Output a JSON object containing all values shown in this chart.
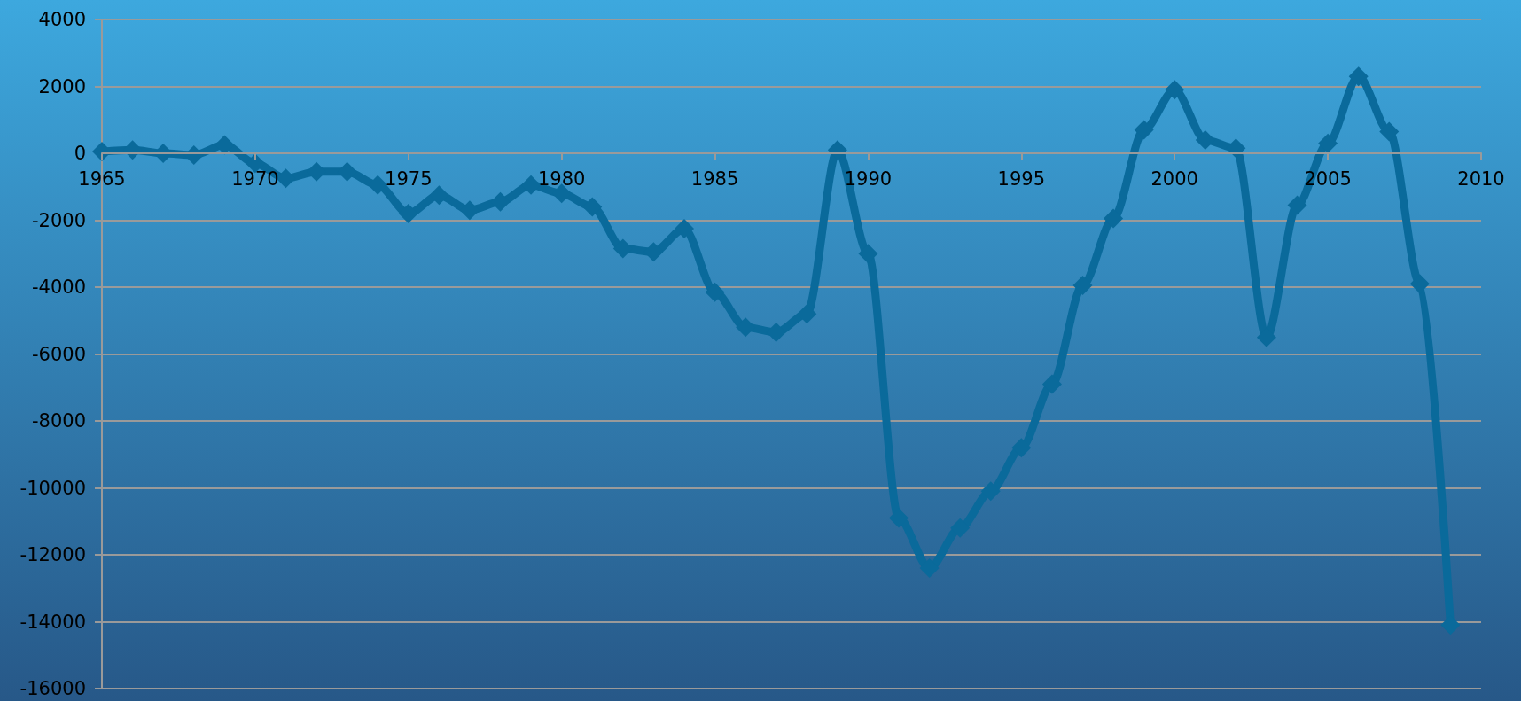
{
  "chart_data": {
    "type": "line",
    "x": [
      1965,
      1966,
      1967,
      1968,
      1969,
      1970,
      1971,
      1972,
      1973,
      1974,
      1975,
      1976,
      1977,
      1978,
      1979,
      1980,
      1981,
      1982,
      1983,
      1984,
      1985,
      1986,
      1987,
      1988,
      1989,
      1990,
      1991,
      1992,
      1993,
      1994,
      1995,
      1996,
      1997,
      1998,
      1999,
      2000,
      2001,
      2002,
      2003,
      2004,
      2005,
      2006,
      2007,
      2008,
      2009
    ],
    "series": [
      {
        "color": "#0a6a9b",
        "values": [
          50,
          100,
          0,
          -50,
          250,
          -300,
          -750,
          -550,
          -550,
          -950,
          -1800,
          -1250,
          -1700,
          -1450,
          -950,
          -1200,
          -1600,
          -2850,
          -2950,
          -2250,
          -4150,
          -5200,
          -5350,
          -4800,
          100,
          -3000,
          -10900,
          -12400,
          -11200,
          -10100,
          -8800,
          -6900,
          -3950,
          -1950,
          700,
          1900,
          400,
          150,
          -5500,
          -1550,
          300,
          2300,
          650,
          -3900,
          -14100
        ]
      }
    ],
    "xlim": [
      1965,
      2010
    ],
    "xticks": [
      1965,
      1970,
      1975,
      1980,
      1985,
      1990,
      1995,
      2000,
      2005,
      2010
    ],
    "ylim": [
      -16000,
      4000
    ],
    "yticks": [
      -16000,
      -14000,
      -12000,
      -10000,
      -8000,
      -6000,
      -4000,
      -2000,
      0,
      2000,
      4000
    ],
    "grid": "y",
    "marker": "diamond",
    "line_style": "solid"
  }
}
